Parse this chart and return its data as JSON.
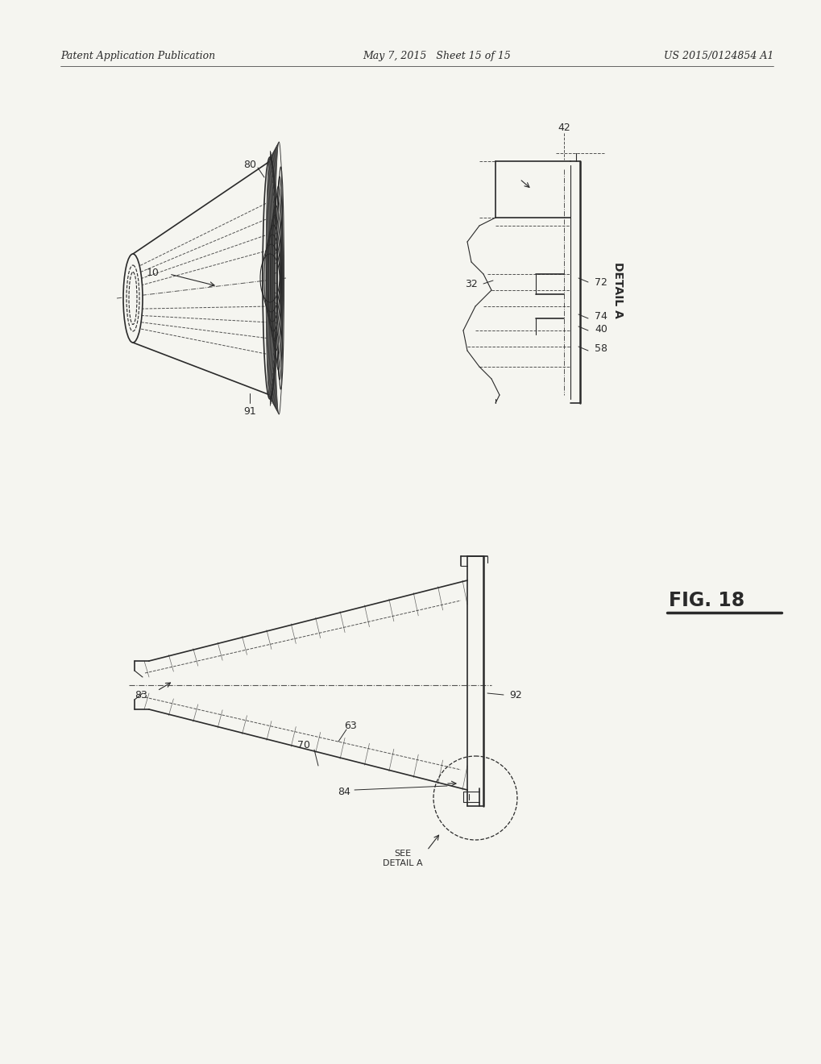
{
  "bg_color": "#f5f5f0",
  "line_color": "#2a2a2a",
  "header_left": "Patent Application Publication",
  "header_mid": "May 7, 2015   Sheet 15 of 15",
  "header_right": "US 2015/0124854 A1",
  "fig18_label": "FIG. 18"
}
